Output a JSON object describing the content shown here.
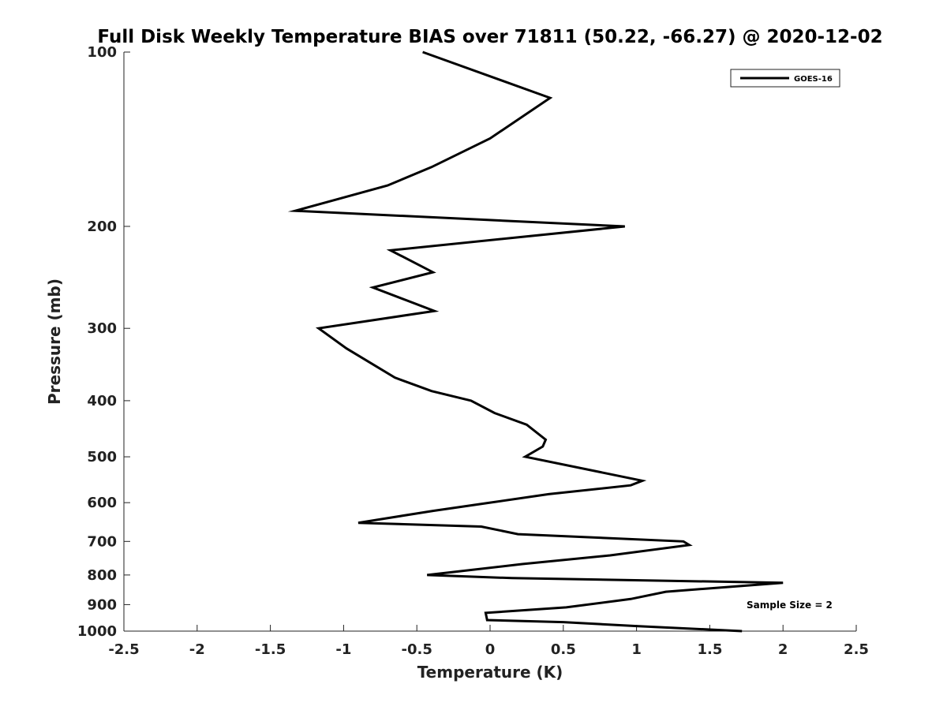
{
  "chart_data": {
    "type": "line",
    "title": "Full Disk Weekly Temperature BIAS over 71811 (50.22, -66.27) @ 2020-12-02",
    "xlabel": "Temperature (K)",
    "ylabel": "Pressure (mb)",
    "xlim": [
      -2.5,
      2.5
    ],
    "ylim": [
      1000,
      100
    ],
    "y_scale": "log",
    "x_ticks": [
      "-2.5",
      "-2",
      "-1.5",
      "-1",
      "-0.5",
      "0",
      "0.5",
      "1",
      "1.5",
      "2",
      "2.5"
    ],
    "x_tick_values": [
      -2.5,
      -2,
      -1.5,
      -1,
      -0.5,
      0,
      0.5,
      1,
      1.5,
      2,
      2.5
    ],
    "y_ticks": [
      "100",
      "200",
      "300",
      "400",
      "500",
      "600",
      "700",
      "800",
      "900",
      "1000"
    ],
    "y_tick_values": [
      100,
      200,
      300,
      400,
      500,
      600,
      700,
      800,
      900,
      1000
    ],
    "grid": false,
    "legend_position": "top-right",
    "series": [
      {
        "name": "GOES-16",
        "color": "#000000",
        "x": [
          -0.46,
          0.41,
          0.0,
          -0.4,
          -0.7,
          -1.33,
          0.92,
          -0.68,
          -0.39,
          -0.8,
          -0.38,
          -1.17,
          -0.98,
          -0.65,
          -0.4,
          -0.13,
          0.03,
          0.25,
          0.38,
          0.36,
          0.24,
          1.04,
          0.96,
          0.4,
          -0.39,
          -0.9,
          -0.06,
          0.19,
          1.32,
          1.36,
          0.82,
          0.22,
          -0.43,
          0.15,
          2.0,
          1.2,
          0.96,
          0.52,
          -0.03,
          -0.02,
          0.5,
          1.0,
          1.72
        ],
        "y": [
          100,
          120,
          141,
          158,
          170,
          188,
          200,
          220,
          240,
          255,
          280,
          300,
          325,
          365,
          385,
          400,
          420,
          440,
          467,
          480,
          500,
          550,
          560,
          580,
          620,
          650,
          660,
          680,
          700,
          710,
          740,
          766,
          800,
          810,
          825,
          855,
          880,
          910,
          930,
          957,
          965,
          980,
          1000
        ]
      }
    ],
    "annotations": [
      "Sample Size = 2"
    ]
  }
}
